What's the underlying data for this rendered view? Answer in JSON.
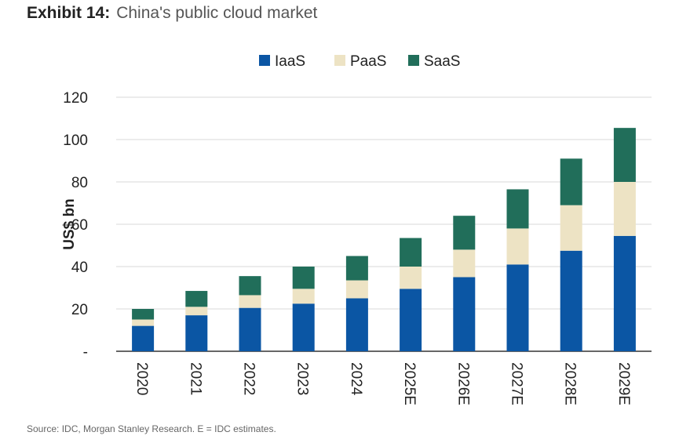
{
  "exhibit": {
    "label": "Exhibit 14:",
    "title": "China's public cloud market"
  },
  "source": "Source: IDC, Morgan Stanley Research. E = IDC estimates.",
  "colors": {
    "IaaS": "#0b56a4",
    "PaaS": "#ede3c4",
    "SaaS": "#216e5a",
    "grid": "#d9d9d9",
    "axis": "#333333",
    "text": "#222222"
  },
  "chart_data": {
    "type": "bar",
    "stacked": true,
    "categories": [
      "2020",
      "2021",
      "2022",
      "2023",
      "2024",
      "2025E",
      "2026E",
      "2027E",
      "2028E",
      "2029E"
    ],
    "series": [
      {
        "name": "IaaS",
        "values": [
          12,
          17,
          20.5,
          22.5,
          25,
          29.5,
          35,
          41,
          47.5,
          54.5
        ]
      },
      {
        "name": "PaaS",
        "values": [
          3,
          4,
          6,
          7,
          8.5,
          10.5,
          13,
          17,
          21.5,
          25.5
        ]
      },
      {
        "name": "SaaS",
        "values": [
          5,
          7.5,
          9,
          10.5,
          11.5,
          13.5,
          16,
          18.5,
          22,
          25.5
        ]
      }
    ],
    "ylabel": "US$ bn",
    "xlabel": "",
    "ylim": [
      0,
      120
    ],
    "yticks": [
      0,
      20,
      40,
      60,
      80,
      100,
      120
    ],
    "ytick_labels": [
      "-",
      "20",
      "40",
      "60",
      "80",
      "100",
      "120"
    ],
    "legend": [
      "IaaS",
      "PaaS",
      "SaaS"
    ],
    "legend_position": "top-center",
    "grid": true
  }
}
